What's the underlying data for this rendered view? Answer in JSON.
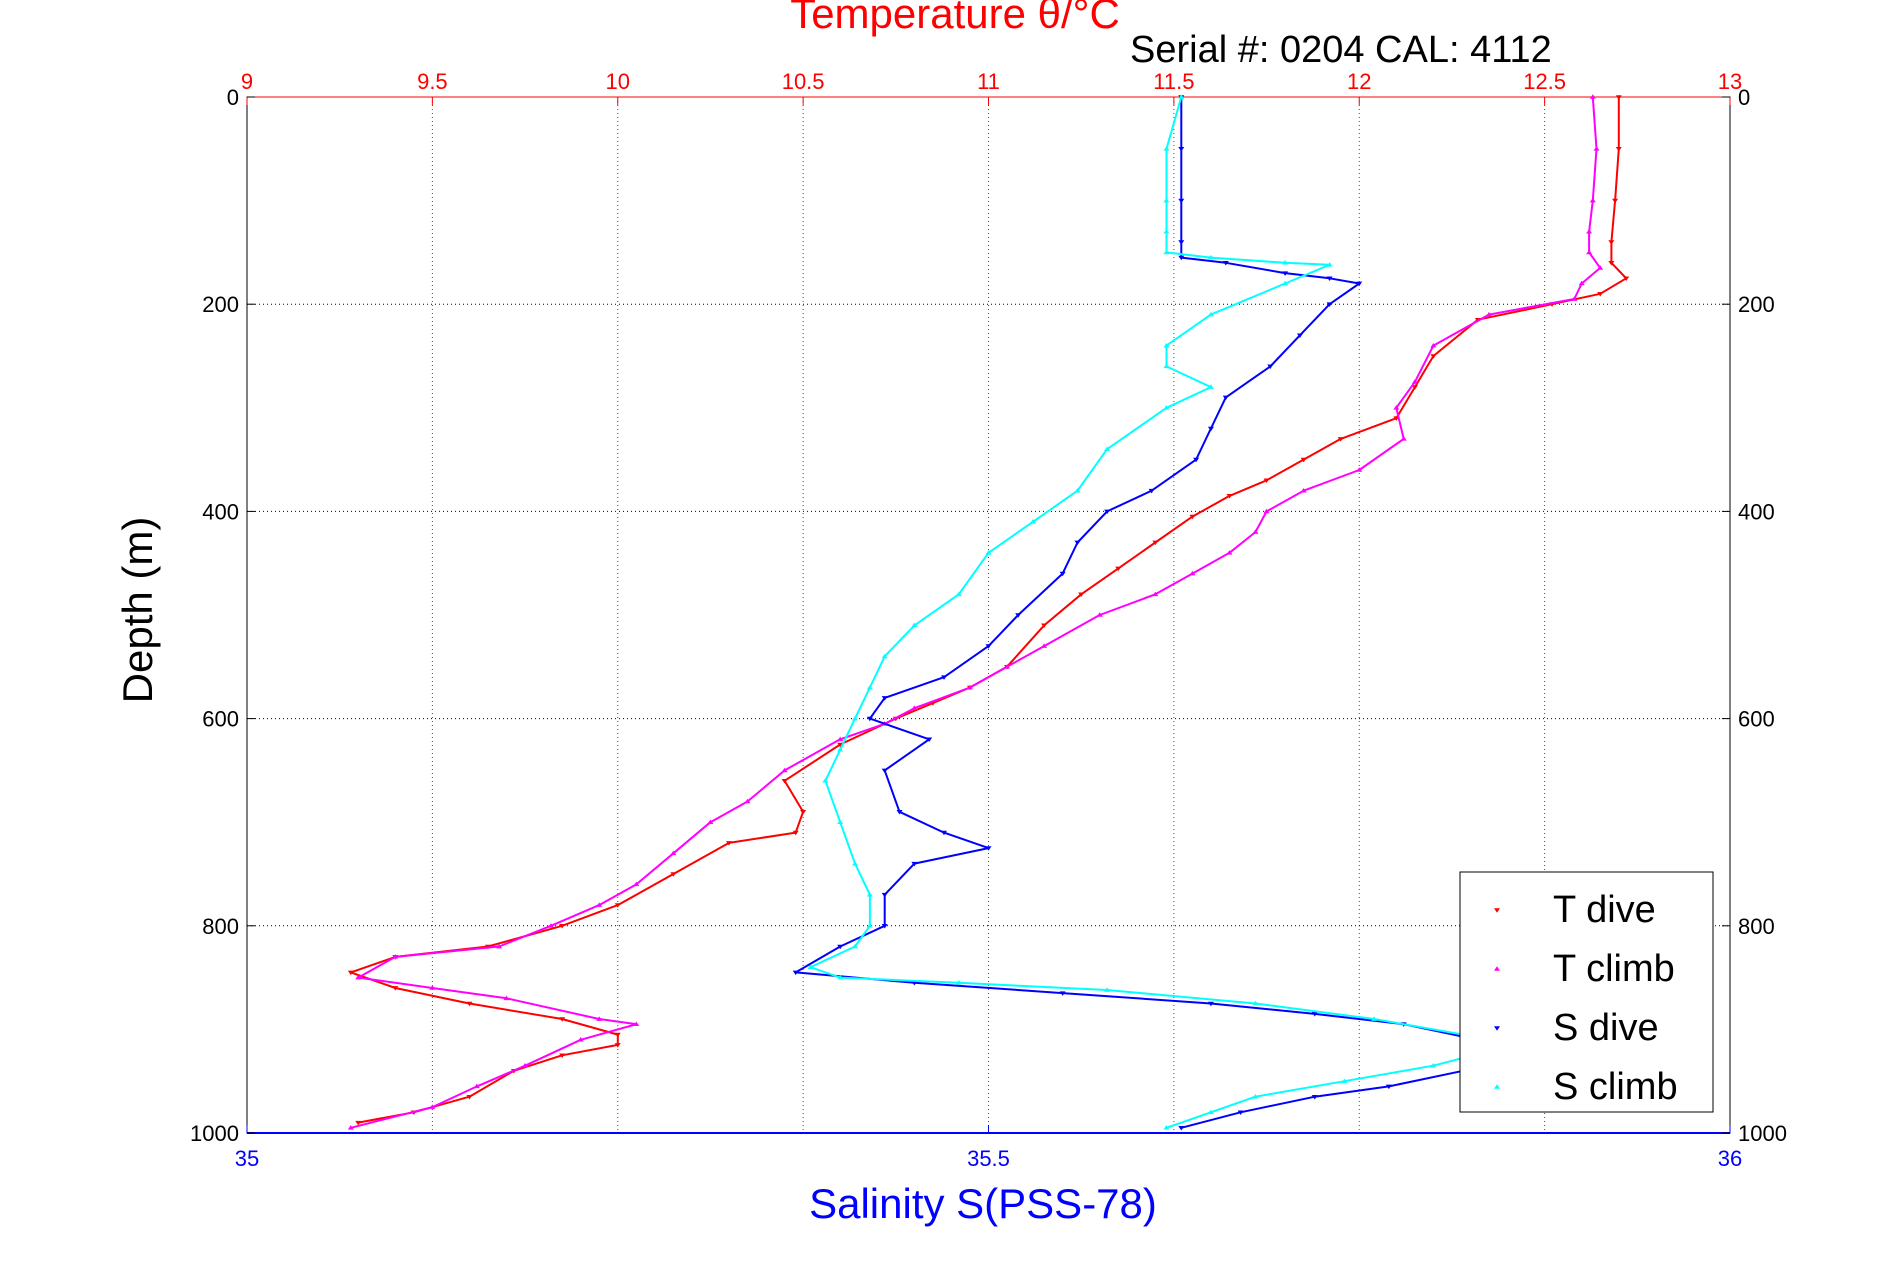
{
  "chart_data": {
    "type": "scatter",
    "title": "Temperature θ/°C",
    "subtitle": "Serial #: 0204  CAL: 4112",
    "xlabel_bottom": "Salinity S(PSS-78)",
    "xlabel_top": "Temperature θ/°C",
    "ylabel": "Depth (m)",
    "xlim_top": [
      9,
      13
    ],
    "xlim_bottom": [
      35,
      36
    ],
    "ylim": [
      0,
      1000
    ],
    "y_reversed": true,
    "grid": true,
    "legend_position": "lower-right",
    "top_ticks": [
      "9",
      "9.5",
      "10",
      "10.5",
      "11",
      "11.5",
      "12",
      "12.5",
      "13"
    ],
    "top_tick_values": [
      9,
      9.5,
      10,
      10.5,
      11,
      11.5,
      12,
      12.5,
      13
    ],
    "bottom_ticks": [
      "35",
      "35.5",
      "36"
    ],
    "bottom_tick_values": [
      35,
      35.5,
      36
    ],
    "y_ticks": [
      "0",
      "200",
      "400",
      "600",
      "800",
      "1000"
    ],
    "y_tick_values": [
      0,
      200,
      400,
      600,
      800,
      1000
    ],
    "colors": {
      "T_dive": "#ff0000",
      "T_climb": "#ff00ff",
      "S_dive": "#0000ff",
      "S_climb": "#00ffff"
    },
    "series": [
      {
        "name": "T dive",
        "axis": "top",
        "color": "#ff0000",
        "marker": "triangle-down",
        "points": [
          [
            12.7,
            0
          ],
          [
            12.7,
            50
          ],
          [
            12.69,
            100
          ],
          [
            12.68,
            140
          ],
          [
            12.68,
            160
          ],
          [
            12.72,
            175
          ],
          [
            12.65,
            190
          ],
          [
            12.52,
            200
          ],
          [
            12.32,
            215
          ],
          [
            12.2,
            250
          ],
          [
            12.15,
            280
          ],
          [
            12.1,
            310
          ],
          [
            11.95,
            330
          ],
          [
            11.85,
            350
          ],
          [
            11.75,
            370
          ],
          [
            11.65,
            385
          ],
          [
            11.55,
            405
          ],
          [
            11.45,
            430
          ],
          [
            11.35,
            455
          ],
          [
            11.25,
            480
          ],
          [
            11.15,
            510
          ],
          [
            11.05,
            550
          ],
          [
            10.95,
            570
          ],
          [
            10.85,
            585
          ],
          [
            10.75,
            600
          ],
          [
            10.6,
            625
          ],
          [
            10.45,
            660
          ],
          [
            10.5,
            690
          ],
          [
            10.48,
            710
          ],
          [
            10.3,
            720
          ],
          [
            10.15,
            750
          ],
          [
            10.0,
            780
          ],
          [
            9.85,
            800
          ],
          [
            9.65,
            820
          ],
          [
            9.4,
            830
          ],
          [
            9.28,
            845
          ],
          [
            9.4,
            860
          ],
          [
            9.6,
            875
          ],
          [
            9.85,
            890
          ],
          [
            10.0,
            905
          ],
          [
            10.0,
            915
          ],
          [
            9.85,
            925
          ],
          [
            9.72,
            940
          ],
          [
            9.6,
            965
          ],
          [
            9.45,
            980
          ],
          [
            9.3,
            990
          ]
        ]
      },
      {
        "name": "T climb",
        "axis": "top",
        "color": "#ff00ff",
        "marker": "triangle-up",
        "points": [
          [
            12.63,
            0
          ],
          [
            12.64,
            50
          ],
          [
            12.63,
            100
          ],
          [
            12.62,
            130
          ],
          [
            12.62,
            150
          ],
          [
            12.65,
            165
          ],
          [
            12.6,
            180
          ],
          [
            12.58,
            195
          ],
          [
            12.35,
            210
          ],
          [
            12.2,
            240
          ],
          [
            12.15,
            275
          ],
          [
            12.1,
            300
          ],
          [
            12.12,
            330
          ],
          [
            12.0,
            360
          ],
          [
            11.85,
            380
          ],
          [
            11.75,
            400
          ],
          [
            11.72,
            420
          ],
          [
            11.65,
            440
          ],
          [
            11.55,
            460
          ],
          [
            11.45,
            480
          ],
          [
            11.3,
            500
          ],
          [
            11.15,
            530
          ],
          [
            11.05,
            550
          ],
          [
            10.95,
            570
          ],
          [
            10.8,
            590
          ],
          [
            10.72,
            605
          ],
          [
            10.6,
            620
          ],
          [
            10.45,
            650
          ],
          [
            10.35,
            680
          ],
          [
            10.25,
            700
          ],
          [
            10.15,
            730
          ],
          [
            10.05,
            760
          ],
          [
            9.95,
            780
          ],
          [
            9.82,
            800
          ],
          [
            9.68,
            820
          ],
          [
            9.4,
            830
          ],
          [
            9.3,
            850
          ],
          [
            9.5,
            860
          ],
          [
            9.7,
            870
          ],
          [
            9.95,
            890
          ],
          [
            10.05,
            895
          ],
          [
            9.9,
            910
          ],
          [
            9.75,
            935
          ],
          [
            9.62,
            955
          ],
          [
            9.5,
            975
          ],
          [
            9.28,
            995
          ]
        ]
      },
      {
        "name": "S dive",
        "axis": "bottom",
        "color": "#0000ff",
        "marker": "triangle-down",
        "points": [
          [
            35.63,
            0
          ],
          [
            35.63,
            50
          ],
          [
            35.63,
            100
          ],
          [
            35.63,
            140
          ],
          [
            35.63,
            155
          ],
          [
            35.66,
            160
          ],
          [
            35.7,
            170
          ],
          [
            35.73,
            175
          ],
          [
            35.75,
            180
          ],
          [
            35.73,
            200
          ],
          [
            35.71,
            230
          ],
          [
            35.69,
            260
          ],
          [
            35.66,
            290
          ],
          [
            35.65,
            320
          ],
          [
            35.64,
            350
          ],
          [
            35.61,
            380
          ],
          [
            35.58,
            400
          ],
          [
            35.56,
            430
          ],
          [
            35.55,
            460
          ],
          [
            35.52,
            500
          ],
          [
            35.5,
            530
          ],
          [
            35.47,
            560
          ],
          [
            35.43,
            580
          ],
          [
            35.42,
            600
          ],
          [
            35.46,
            620
          ],
          [
            35.43,
            650
          ],
          [
            35.44,
            690
          ],
          [
            35.47,
            710
          ],
          [
            35.5,
            725
          ],
          [
            35.45,
            740
          ],
          [
            35.43,
            770
          ],
          [
            35.43,
            800
          ],
          [
            35.4,
            820
          ],
          [
            35.37,
            845
          ],
          [
            35.45,
            855
          ],
          [
            35.55,
            865
          ],
          [
            35.65,
            875
          ],
          [
            35.72,
            885
          ],
          [
            35.78,
            895
          ],
          [
            35.83,
            910
          ],
          [
            35.85,
            925
          ],
          [
            35.82,
            940
          ],
          [
            35.77,
            955
          ],
          [
            35.72,
            965
          ],
          [
            35.67,
            980
          ],
          [
            35.63,
            995
          ]
        ]
      },
      {
        "name": "S climb",
        "axis": "bottom",
        "color": "#00ffff",
        "marker": "triangle-up",
        "points": [
          [
            35.63,
            0
          ],
          [
            35.62,
            50
          ],
          [
            35.62,
            100
          ],
          [
            35.62,
            130
          ],
          [
            35.62,
            150
          ],
          [
            35.65,
            155
          ],
          [
            35.7,
            160
          ],
          [
            35.73,
            162
          ],
          [
            35.7,
            180
          ],
          [
            35.65,
            210
          ],
          [
            35.62,
            240
          ],
          [
            35.62,
            260
          ],
          [
            35.65,
            280
          ],
          [
            35.62,
            300
          ],
          [
            35.58,
            340
          ],
          [
            35.56,
            380
          ],
          [
            35.53,
            410
          ],
          [
            35.5,
            440
          ],
          [
            35.48,
            480
          ],
          [
            35.45,
            510
          ],
          [
            35.43,
            540
          ],
          [
            35.42,
            570
          ],
          [
            35.41,
            600
          ],
          [
            35.4,
            630
          ],
          [
            35.39,
            660
          ],
          [
            35.4,
            700
          ],
          [
            35.41,
            740
          ],
          [
            35.42,
            770
          ],
          [
            35.42,
            800
          ],
          [
            35.41,
            820
          ],
          [
            35.38,
            840
          ],
          [
            35.4,
            850
          ],
          [
            35.48,
            855
          ],
          [
            35.58,
            862
          ],
          [
            35.68,
            875
          ],
          [
            35.76,
            890
          ],
          [
            35.82,
            905
          ],
          [
            35.84,
            920
          ],
          [
            35.8,
            935
          ],
          [
            35.74,
            950
          ],
          [
            35.68,
            965
          ],
          [
            35.65,
            980
          ],
          [
            35.62,
            995
          ]
        ]
      }
    ],
    "legend": [
      "T dive",
      "T climb",
      "S dive",
      "S climb"
    ]
  }
}
